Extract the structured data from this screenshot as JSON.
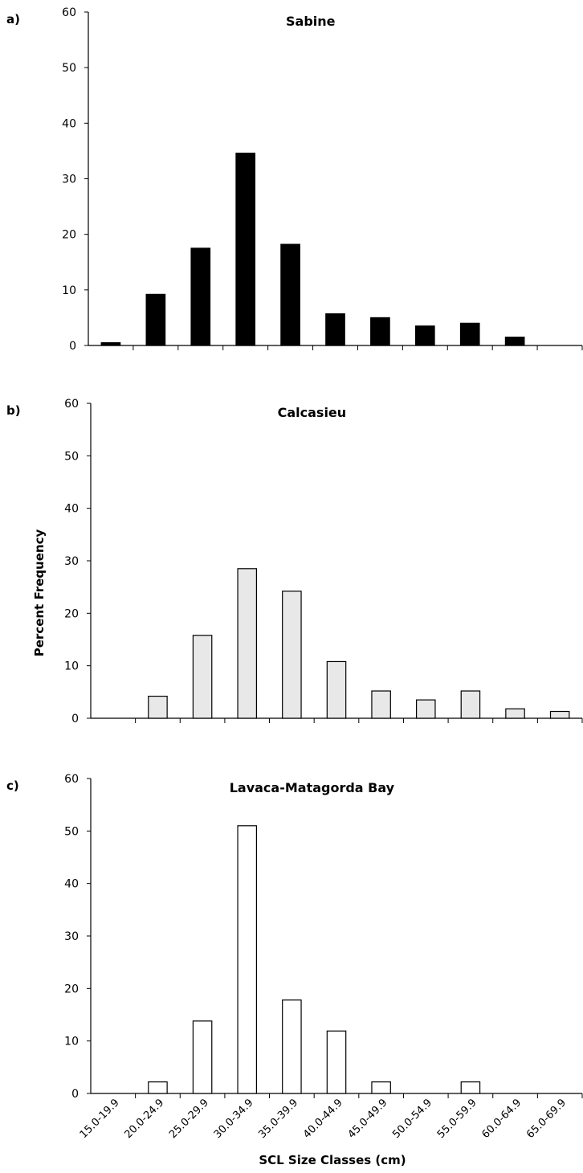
{
  "chart_data": [
    {
      "type": "bar",
      "panel": "a)",
      "title": "Sabine",
      "categories": [
        "15.0-19.9",
        "20.0-24.9",
        "25.0-29.9",
        "30.0-34.9",
        "35.0-39.9",
        "40.0-44.9",
        "45.0-49.9",
        "50.0-54.9",
        "55.0-59.9",
        "60.0-64.9",
        "65.0-69.9"
      ],
      "values": [
        0.5,
        9.2,
        17.5,
        34.6,
        18.2,
        5.7,
        5.0,
        3.5,
        4.0,
        1.5,
        0
      ],
      "fill": "#000000",
      "ylim": [
        0,
        60
      ],
      "yticks": [
        0,
        10,
        20,
        30,
        40,
        50,
        60
      ]
    },
    {
      "type": "bar",
      "panel": "b)",
      "title": "Calcasieu",
      "categories": [
        "15.0-19.9",
        "20.0-24.9",
        "25.0-29.9",
        "30.0-34.9",
        "35.0-39.9",
        "40.0-44.9",
        "45.0-49.9",
        "50.0-54.9",
        "55.0-59.9",
        "60.0-64.9",
        "65.0-69.9"
      ],
      "values": [
        0,
        4.2,
        15.8,
        28.5,
        24.2,
        10.8,
        5.2,
        3.5,
        5.2,
        1.8,
        1.3
      ],
      "fill": "#e8e8e8",
      "ylim": [
        0,
        60
      ],
      "yticks": [
        0,
        10,
        20,
        30,
        40,
        50,
        60
      ]
    },
    {
      "type": "bar",
      "panel": "c)",
      "title": "Lavaca-Matagorda Bay",
      "categories": [
        "15.0-19.9",
        "20.0-24.9",
        "25.0-29.9",
        "30.0-34.9",
        "35.0-39.9",
        "40.0-44.9",
        "45.0-49.9",
        "50.0-54.9",
        "55.0-59.9",
        "60.0-64.9",
        "65.0-69.9"
      ],
      "values": [
        0,
        2.2,
        13.8,
        51.0,
        17.8,
        11.9,
        2.2,
        0,
        2.2,
        0,
        0
      ],
      "fill": "#ffffff",
      "ylim": [
        0,
        60
      ],
      "yticks": [
        0,
        10,
        20,
        30,
        40,
        50,
        60
      ]
    }
  ],
  "ylabel": "Percent Frequency",
  "xlabel": "SCL Size Classes (cm)"
}
